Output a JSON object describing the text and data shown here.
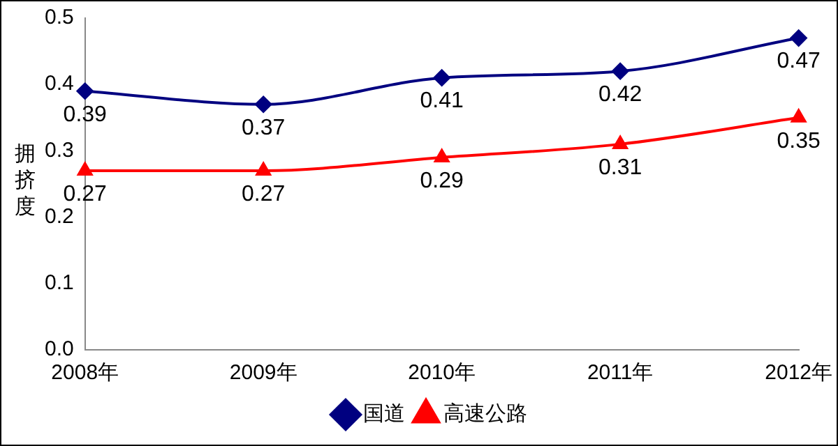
{
  "chart_data": {
    "type": "line",
    "ylabel": "拥挤度",
    "categories": [
      "2008年",
      "2009年",
      "2010年",
      "2011年",
      "2012年"
    ],
    "series": [
      {
        "name": "国道",
        "color": "#000080",
        "marker": "diamond",
        "values": [
          0.39,
          0.37,
          0.41,
          0.42,
          0.47
        ]
      },
      {
        "name": "高速公路",
        "color": "#ff0000",
        "marker": "triangle",
        "values": [
          0.27,
          0.27,
          0.29,
          0.31,
          0.35
        ]
      }
    ],
    "ylim": [
      0,
      0.5
    ],
    "yticks": [
      {
        "value": 0,
        "label": "0.0"
      },
      0.1,
      0.2,
      0.3,
      0.4,
      0.5
    ],
    "grid": false,
    "legend": "bottom",
    "data_labels": true
  }
}
